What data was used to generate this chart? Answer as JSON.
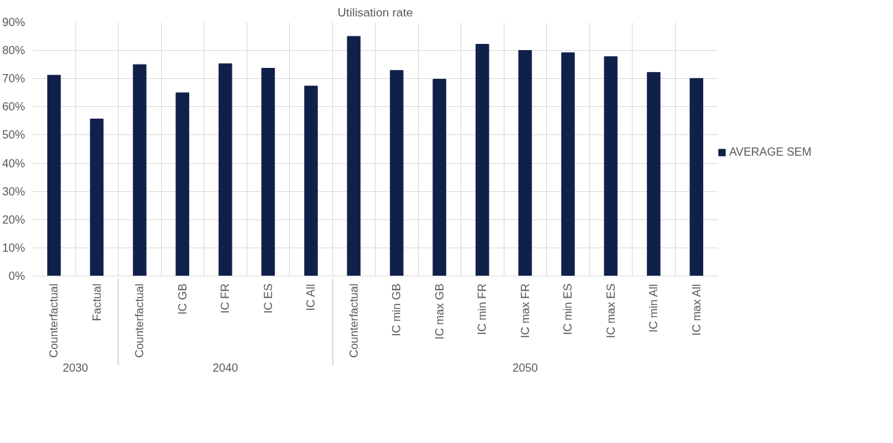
{
  "chart_data": {
    "type": "bar",
    "title": "Utilisation rate",
    "categories": [
      [
        "2030",
        "Counterfactual"
      ],
      [
        null,
        "Factual"
      ],
      [
        "2040",
        "Counterfactual"
      ],
      [
        null,
        "IC GB"
      ],
      [
        null,
        "IC FR"
      ],
      [
        null,
        "IC ES"
      ],
      [
        null,
        "IC All"
      ],
      [
        "2050",
        "Counterfactual"
      ],
      [
        null,
        "IC min GB"
      ],
      [
        null,
        "IC max GB"
      ],
      [
        null,
        "IC min FR"
      ],
      [
        null,
        "IC max FR"
      ],
      [
        null,
        "IC min ES"
      ],
      [
        null,
        "IC max ES"
      ],
      [
        null,
        "IC min All"
      ],
      [
        null,
        "IC max All"
      ]
    ],
    "series": [
      {
        "name": "AVERAGE SEM",
        "color": "#10204a",
        "values": [
          71.2,
          55.7,
          75.0,
          65.0,
          75.3,
          73.7,
          67.4,
          85.0,
          72.9,
          69.8,
          82.2,
          80.0,
          79.2,
          77.8,
          72.2,
          70.1
        ]
      }
    ],
    "ylim": [
      0,
      90
    ],
    "yticks": [
      {
        "value": 0,
        "label": "0%"
      },
      {
        "value": 10,
        "label": "10%"
      },
      {
        "value": 20,
        "label": "20%"
      },
      {
        "value": 30,
        "label": "30%"
      },
      {
        "value": 40,
        "label": "40%"
      },
      {
        "value": 50,
        "label": "50%"
      },
      {
        "value": 60,
        "label": "60%"
      },
      {
        "value": 70,
        "label": "70%"
      },
      {
        "value": 80,
        "label": "80%"
      },
      {
        "value": 90,
        "label": "90%"
      }
    ],
    "grid": true,
    "legend": "right"
  }
}
